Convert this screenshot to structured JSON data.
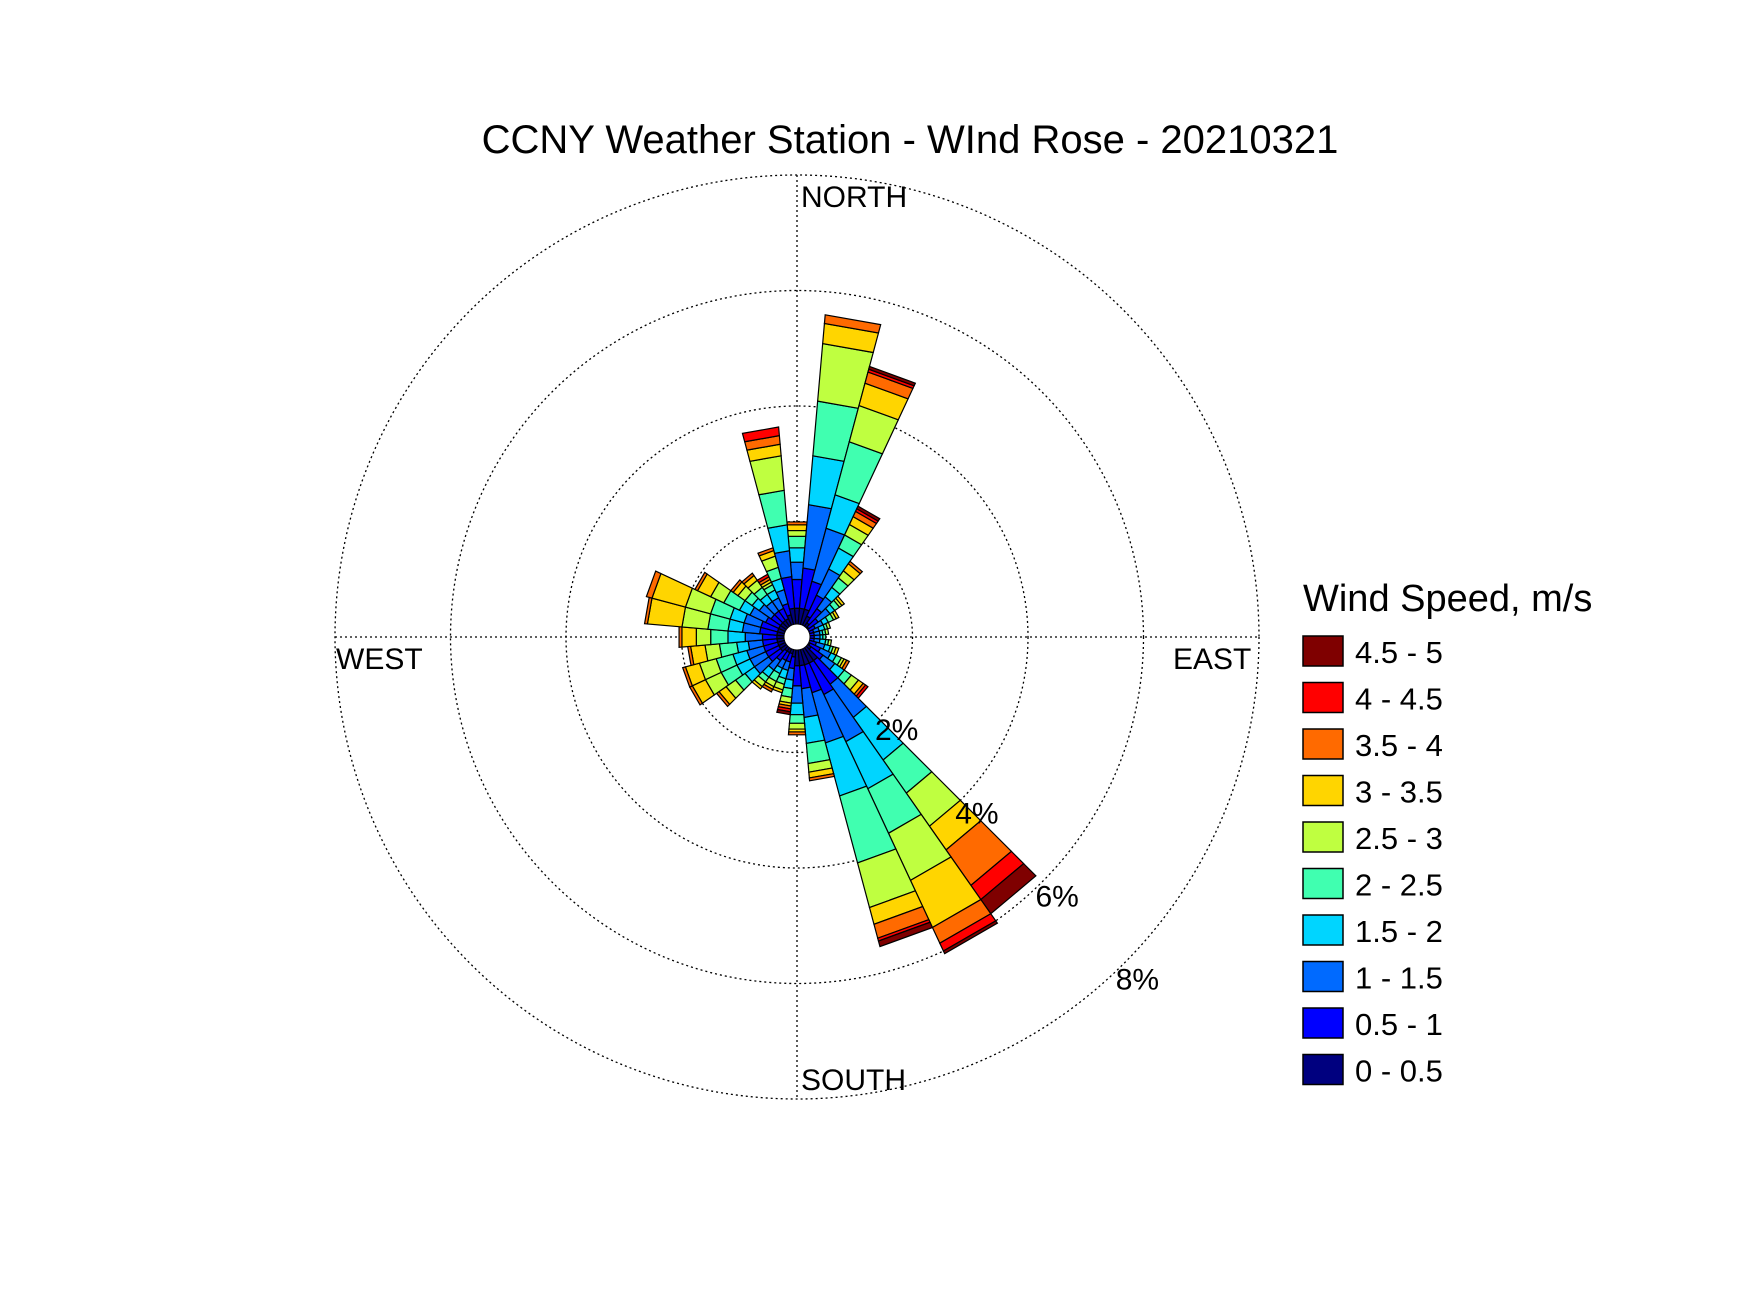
{
  "chart_data": {
    "type": "wind-rose",
    "title": "CCNY Weather Station - WInd Rose - 20210321",
    "directions": {
      "north": "NORTH",
      "east": "EAST",
      "south": "SOUTH",
      "west": "WEST"
    },
    "radial_max": 8,
    "ring_values": [
      2,
      4,
      6,
      8
    ],
    "ring_labels": [
      "2%",
      "4%",
      "6%",
      "8%"
    ],
    "grid": true,
    "legend": {
      "title": "Wind Speed, m/s",
      "placement": "right",
      "bins": [
        {
          "label": "4.5 - 5",
          "color": "#7f0000"
        },
        {
          "label": "4 - 4.5",
          "color": "#ff0000"
        },
        {
          "label": "3.5 - 4",
          "color": "#ff6a00"
        },
        {
          "label": "3 - 3.5",
          "color": "#ffd500"
        },
        {
          "label": "2.5 - 3",
          "color": "#bfff40"
        },
        {
          "label": "2 - 2.5",
          "color": "#40ffb0"
        },
        {
          "label": "1.5 - 2",
          "color": "#00d5ff"
        },
        {
          "label": "1 - 1.5",
          "color": "#006aff"
        },
        {
          "label": "0.5 - 1",
          "color": "#0000ff"
        },
        {
          "label": "0 - 0.5",
          "color": "#00007f"
        }
      ]
    },
    "bin_order": "0 - 0.5 first (innermost) to 4.5 - 5 last (outermost)",
    "sectors_count": 36,
    "sectors": [
      {
        "direction_deg": 0,
        "cumulative": [
          0.5,
          1.0,
          1.3,
          1.55,
          1.75,
          1.85,
          1.95,
          2.0,
          2.0,
          2.0
        ]
      },
      {
        "direction_deg": 10,
        "cumulative": [
          0.5,
          1.2,
          2.3,
          3.15,
          4.1,
          5.1,
          5.45,
          5.6,
          5.6,
          5.6
        ]
      },
      {
        "direction_deg": 20,
        "cumulative": [
          0.5,
          1.0,
          1.95,
          2.55,
          3.5,
          4.15,
          4.55,
          4.75,
          4.8,
          4.85
        ]
      },
      {
        "direction_deg": 30,
        "cumulative": [
          0.4,
          0.8,
          1.3,
          1.7,
          1.95,
          2.15,
          2.3,
          2.4,
          2.45,
          2.5
        ]
      },
      {
        "direction_deg": 40,
        "cumulative": [
          0.3,
          0.6,
          0.85,
          1.05,
          1.25,
          1.4,
          1.55,
          1.6,
          1.6,
          1.6
        ]
      },
      {
        "direction_deg": 50,
        "cumulative": [
          0.25,
          0.45,
          0.7,
          0.8,
          0.9,
          0.95,
          1.0,
          1.0,
          1.0,
          1.0
        ]
      },
      {
        "direction_deg": 60,
        "cumulative": [
          0.2,
          0.35,
          0.5,
          0.6,
          0.7,
          0.75,
          0.8,
          0.8,
          0.8,
          0.8
        ]
      },
      {
        "direction_deg": 70,
        "cumulative": [
          0.2,
          0.3,
          0.4,
          0.5,
          0.55,
          0.6,
          0.6,
          0.6,
          0.6,
          0.6
        ]
      },
      {
        "direction_deg": 80,
        "cumulative": [
          0.2,
          0.3,
          0.4,
          0.45,
          0.5,
          0.55,
          0.55,
          0.55,
          0.55,
          0.55
        ]
      },
      {
        "direction_deg": 90,
        "cumulative": [
          0.2,
          0.3,
          0.4,
          0.45,
          0.5,
          0.5,
          0.5,
          0.5,
          0.5,
          0.5
        ]
      },
      {
        "direction_deg": 100,
        "cumulative": [
          0.2,
          0.3,
          0.4,
          0.5,
          0.55,
          0.6,
          0.6,
          0.6,
          0.6,
          0.6
        ]
      },
      {
        "direction_deg": 110,
        "cumulative": [
          0.2,
          0.35,
          0.5,
          0.6,
          0.65,
          0.7,
          0.75,
          0.75,
          0.75,
          0.75
        ]
      },
      {
        "direction_deg": 120,
        "cumulative": [
          0.25,
          0.45,
          0.65,
          0.75,
          0.85,
          0.9,
          0.95,
          1.0,
          1.0,
          1.0
        ]
      },
      {
        "direction_deg": 130,
        "cumulative": [
          0.3,
          0.55,
          0.8,
          1.0,
          1.15,
          1.3,
          1.4,
          1.45,
          1.5,
          1.5
        ]
      },
      {
        "direction_deg": 140,
        "cumulative": [
          0.5,
          1.0,
          1.7,
          2.6,
          3.3,
          4.0,
          4.5,
          5.25,
          5.55,
          5.85
        ]
      },
      {
        "direction_deg": 150,
        "cumulative": [
          0.5,
          1.1,
          2.0,
          2.9,
          3.75,
          4.65,
          5.55,
          5.85,
          6.0,
          6.05
        ]
      },
      {
        "direction_deg": 160,
        "cumulative": [
          0.5,
          1.0,
          1.9,
          2.85,
          4.05,
          4.85,
          5.15,
          5.4,
          5.45,
          5.55
        ]
      },
      {
        "direction_deg": 170,
        "cumulative": [
          0.5,
          0.9,
          1.4,
          1.85,
          2.2,
          2.35,
          2.45,
          2.5,
          2.5,
          2.5
        ]
      },
      {
        "direction_deg": 180,
        "cumulative": [
          0.5,
          0.85,
          1.15,
          1.35,
          1.5,
          1.6,
          1.65,
          1.7,
          1.7,
          1.7
        ]
      },
      {
        "direction_deg": 190,
        "cumulative": [
          0.35,
          0.55,
          0.75,
          0.9,
          1.05,
          1.15,
          1.2,
          1.25,
          1.3,
          1.35
        ]
      },
      {
        "direction_deg": 200,
        "cumulative": [
          0.3,
          0.45,
          0.6,
          0.75,
          0.85,
          0.95,
          1.0,
          1.0,
          1.0,
          1.0
        ]
      },
      {
        "direction_deg": 210,
        "cumulative": [
          0.3,
          0.45,
          0.6,
          0.7,
          0.85,
          0.95,
          1.0,
          1.05,
          1.05,
          1.05
        ]
      },
      {
        "direction_deg": 220,
        "cumulative": [
          0.3,
          0.5,
          0.7,
          0.85,
          0.95,
          1.05,
          1.1,
          1.1,
          1.1,
          1.1
        ]
      },
      {
        "direction_deg": 230,
        "cumulative": [
          0.35,
          0.6,
          0.9,
          1.1,
          1.3,
          1.5,
          1.65,
          1.7,
          1.7,
          1.7
        ]
      },
      {
        "direction_deg": 240,
        "cumulative": [
          0.35,
          0.6,
          0.9,
          1.15,
          1.45,
          1.75,
          2.0,
          2.05,
          2.05,
          2.05
        ]
      },
      {
        "direction_deg": 250,
        "cumulative": [
          0.35,
          0.6,
          0.9,
          1.15,
          1.45,
          1.75,
          2.0,
          2.05,
          2.05,
          2.05
        ]
      },
      {
        "direction_deg": 260,
        "cumulative": [
          0.35,
          0.6,
          0.85,
          1.05,
          1.35,
          1.6,
          1.85,
          1.9,
          1.9,
          1.9
        ]
      },
      {
        "direction_deg": 270,
        "cumulative": [
          0.35,
          0.6,
          0.9,
          1.2,
          1.5,
          1.75,
          2.0,
          2.05,
          2.05,
          2.05
        ]
      },
      {
        "direction_deg": 280,
        "cumulative": [
          0.35,
          0.65,
          0.95,
          1.2,
          1.55,
          2.0,
          2.6,
          2.65,
          2.65,
          2.65
        ]
      },
      {
        "direction_deg": 290,
        "cumulative": [
          0.35,
          0.65,
          0.95,
          1.2,
          1.55,
          2.0,
          2.6,
          2.7,
          2.7,
          2.7
        ]
      },
      {
        "direction_deg": 300,
        "cumulative": [
          0.35,
          0.6,
          0.9,
          1.1,
          1.4,
          1.65,
          1.9,
          1.95,
          1.95,
          1.95
        ]
      },
      {
        "direction_deg": 310,
        "cumulative": [
          0.35,
          0.55,
          0.8,
          0.95,
          1.1,
          1.25,
          1.35,
          1.4,
          1.4,
          1.4
        ]
      },
      {
        "direction_deg": 320,
        "cumulative": [
          0.35,
          0.55,
          0.75,
          0.9,
          1.05,
          1.2,
          1.3,
          1.35,
          1.35,
          1.35
        ]
      },
      {
        "direction_deg": 330,
        "cumulative": [
          0.35,
          0.55,
          0.75,
          0.9,
          1.0,
          1.05,
          1.1,
          1.15,
          1.2,
          1.2
        ]
      },
      {
        "direction_deg": 340,
        "cumulative": [
          0.4,
          0.6,
          0.85,
          1.05,
          1.25,
          1.45,
          1.55,
          1.6,
          1.6,
          1.6
        ]
      },
      {
        "direction_deg": 350,
        "cumulative": [
          0.5,
          1.05,
          1.5,
          1.95,
          2.55,
          3.15,
          3.35,
          3.5,
          3.65,
          3.65
        ]
      }
    ]
  }
}
